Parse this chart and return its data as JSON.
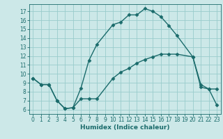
{
  "title": "",
  "xlabel": "Humidex (Indice chaleur)",
  "bg_color": "#cce8e8",
  "line_color": "#1a6b6b",
  "grid_color": "#99cccc",
  "xlim": [
    -0.5,
    23.5
  ],
  "ylim": [
    5.5,
    17.8
  ],
  "xticks": [
    0,
    1,
    2,
    3,
    4,
    5,
    6,
    7,
    8,
    9,
    10,
    11,
    12,
    13,
    14,
    15,
    16,
    17,
    18,
    19,
    20,
    21,
    22,
    23
  ],
  "yticks": [
    6,
    7,
    8,
    9,
    10,
    11,
    12,
    13,
    14,
    15,
    16,
    17
  ],
  "line1_x": [
    0,
    1,
    2,
    3,
    4,
    5,
    6,
    7,
    8,
    10,
    11,
    12,
    13,
    14,
    15,
    16,
    17,
    18,
    20,
    21,
    22,
    23
  ],
  "line1_y": [
    9.5,
    8.8,
    8.8,
    7.0,
    6.1,
    6.2,
    8.4,
    11.5,
    13.3,
    15.5,
    15.8,
    16.6,
    16.6,
    17.3,
    17.0,
    16.4,
    15.4,
    14.3,
    11.9,
    8.5,
    8.3,
    8.3
  ],
  "line2_x": [
    0,
    1,
    2,
    3,
    4,
    5,
    6,
    7,
    8,
    10,
    11,
    12,
    13,
    14,
    15,
    16,
    17,
    18,
    20,
    21,
    22,
    23
  ],
  "line2_y": [
    9.5,
    8.8,
    8.8,
    7.0,
    6.1,
    6.2,
    7.2,
    7.2,
    7.2,
    9.5,
    10.2,
    10.6,
    11.2,
    11.6,
    11.9,
    12.2,
    12.2,
    12.2,
    11.9,
    8.8,
    8.3,
    6.5
  ],
  "tick_labelsize": 5.5,
  "xlabel_fontsize": 6.5,
  "linewidth": 1.0,
  "markersize": 2.5
}
